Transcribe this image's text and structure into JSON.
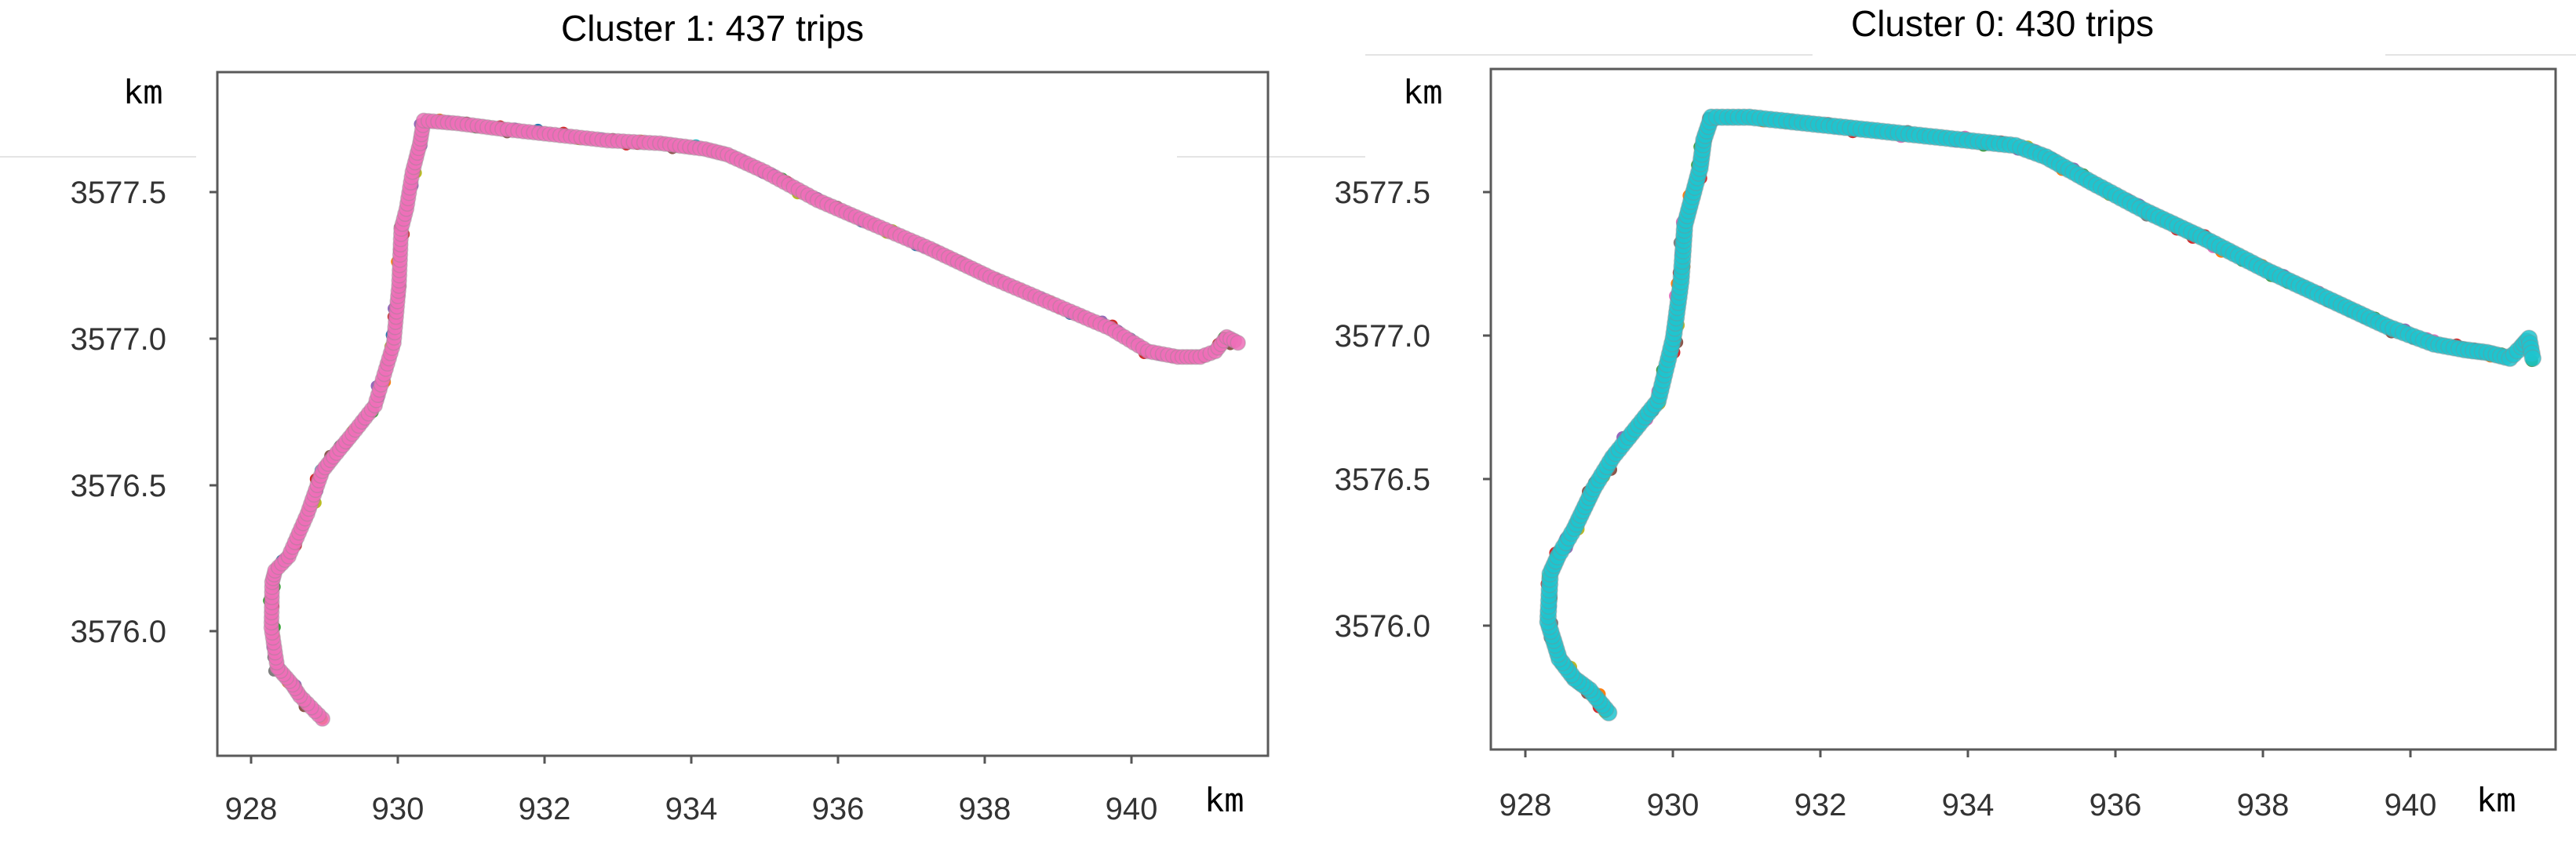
{
  "chart_data": [
    {
      "type": "scatter",
      "title": "Cluster 1: 437 trips",
      "xlabel": "km",
      "ylabel": "km",
      "xlim": [
        927.5,
        941.5
      ],
      "ylim": [
        3575.55,
        3577.95
      ],
      "xticks": [
        "928",
        "930",
        "932",
        "934",
        "936",
        "938",
        "940"
      ],
      "yticks": [
        "3576.0",
        "3576.5",
        "3577.0",
        "3577.5"
      ],
      "grid": false,
      "main_color": "#ee6fb8",
      "noise_colors": [
        "#1f77b4",
        "#ff7f0e",
        "#2ca02c",
        "#d62728",
        "#9467bd",
        "#8c564b",
        "#17becf",
        "#bcbd22",
        "#7f7f7f"
      ],
      "series": [
        {
          "x": [
            928.9,
            928.6,
            928.5,
            928.3,
            928.22,
            928.23,
            928.27,
            928.45,
            928.7,
            928.9,
            929.05,
            929.3,
            929.6,
            929.85,
            929.92,
            929.95,
            930.02,
            930.1,
            930.2,
            930.25,
            930.7,
            931.3,
            932.0,
            932.7,
            933.4,
            934.0,
            934.3,
            934.8,
            935.5,
            936.2,
            937.0,
            937.8,
            938.6,
            939.4,
            939.9,
            940.3,
            940.6,
            940.8,
            940.95,
            941.1
          ],
          "y": [
            3575.68,
            3575.76,
            3575.8,
            3575.86,
            3576.0,
            3576.16,
            3576.2,
            3576.25,
            3576.4,
            3576.55,
            3576.6,
            3576.68,
            3576.78,
            3577.0,
            3577.2,
            3577.4,
            3577.47,
            3577.6,
            3577.7,
            3577.78,
            3577.77,
            3577.75,
            3577.73,
            3577.71,
            3577.7,
            3577.68,
            3577.66,
            3577.6,
            3577.5,
            3577.42,
            3577.33,
            3577.23,
            3577.14,
            3577.05,
            3576.97,
            3576.95,
            3576.95,
            3576.97,
            3577.02,
            3577.0
          ]
        }
      ]
    },
    {
      "type": "scatter",
      "title": "Cluster 0: 430 trips",
      "xlabel": "km",
      "ylabel": "km",
      "xlim": [
        927.4,
        941.4
      ],
      "ylim": [
        3575.55,
        3577.95
      ],
      "xticks": [
        "928",
        "930",
        "932",
        "934",
        "936",
        "938",
        "940"
      ],
      "yticks": [
        "3576.0",
        "3576.5",
        "3577.0",
        "3577.5"
      ],
      "grid": false,
      "main_color": "#1fc4cf",
      "noise_colors": [
        "#ff7f0e",
        "#2ca02c",
        "#d62728",
        "#bcbd22",
        "#7f7f7f",
        "#e377c2",
        "#9467bd",
        "#8c564b"
      ],
      "series": [
        {
          "x": [
            928.95,
            928.7,
            928.5,
            928.3,
            928.15,
            928.18,
            928.28,
            928.5,
            928.75,
            929.0,
            929.3,
            929.6,
            929.8,
            929.9,
            929.95,
            930.05,
            930.15,
            930.2,
            930.3,
            930.8,
            931.5,
            932.2,
            932.9,
            933.6,
            934.3,
            934.7,
            935.3,
            936.0,
            936.8,
            937.6,
            938.4,
            939.2,
            939.8,
            940.2,
            940.5,
            940.8,
            940.95,
            941.05,
            941.1
          ],
          "y": [
            3575.68,
            3575.76,
            3575.8,
            3575.87,
            3576.0,
            3576.17,
            3576.23,
            3576.33,
            3576.47,
            3576.58,
            3576.68,
            3576.78,
            3577.0,
            3577.2,
            3577.4,
            3577.5,
            3577.6,
            3577.7,
            3577.78,
            3577.78,
            3577.76,
            3577.74,
            3577.72,
            3577.7,
            3577.68,
            3577.64,
            3577.55,
            3577.45,
            3577.35,
            3577.24,
            3577.14,
            3577.04,
            3576.98,
            3576.96,
            3576.95,
            3576.93,
            3576.97,
            3577.0,
            3576.93
          ]
        }
      ]
    }
  ]
}
